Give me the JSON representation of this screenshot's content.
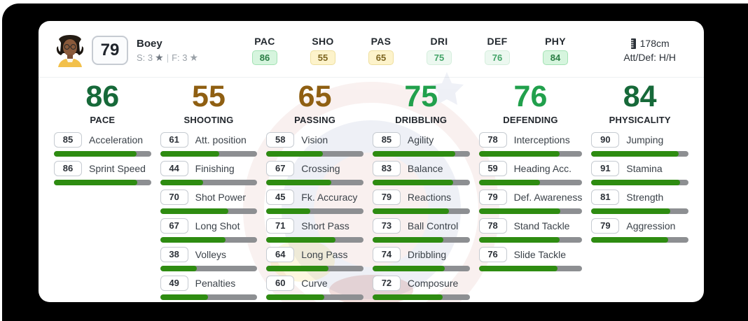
{
  "player": {
    "rating": "79",
    "name": "Boey",
    "skill_label": "S: 3",
    "foot_label": "F: 3",
    "separator": "|",
    "height": "178cm",
    "att_def": "Att/Def: H/H"
  },
  "icons": {
    "star": "★"
  },
  "header_stats": [
    {
      "label": "PAC",
      "value": "86",
      "tone": "green"
    },
    {
      "label": "SHO",
      "value": "55",
      "tone": "yellow"
    },
    {
      "label": "PAS",
      "value": "65",
      "tone": "yellow"
    },
    {
      "label": "DRI",
      "value": "75",
      "tone": "lightgreen"
    },
    {
      "label": "DEF",
      "value": "76",
      "tone": "lightgreen"
    },
    {
      "label": "PHY",
      "value": "84",
      "tone": "green"
    }
  ],
  "categories": [
    {
      "name": "PACE",
      "value": 86,
      "tone": "green-dark",
      "stats": [
        {
          "value": 85,
          "label": "Acceleration"
        },
        {
          "value": 86,
          "label": "Sprint Speed"
        }
      ]
    },
    {
      "name": "SHOOTING",
      "value": 55,
      "tone": "brown",
      "stats": [
        {
          "value": 61,
          "label": "Att. position"
        },
        {
          "value": 44,
          "label": "Finishing"
        },
        {
          "value": 70,
          "label": "Shot Power"
        },
        {
          "value": 67,
          "label": "Long Shot"
        },
        {
          "value": 38,
          "label": "Volleys"
        },
        {
          "value": 49,
          "label": "Penalties"
        }
      ]
    },
    {
      "name": "PASSING",
      "value": 65,
      "tone": "brown",
      "stats": [
        {
          "value": 58,
          "label": "Vision"
        },
        {
          "value": 67,
          "label": "Crossing"
        },
        {
          "value": 45,
          "label": "Fk. Accuracy"
        },
        {
          "value": 71,
          "label": "Short Pass"
        },
        {
          "value": 64,
          "label": "Long Pass"
        },
        {
          "value": 60,
          "label": "Curve"
        }
      ]
    },
    {
      "name": "DRIBBLING",
      "value": 75,
      "tone": "green",
      "stats": [
        {
          "value": 85,
          "label": "Agility"
        },
        {
          "value": 83,
          "label": "Balance"
        },
        {
          "value": 79,
          "label": "Reactions"
        },
        {
          "value": 73,
          "label": "Ball Control"
        },
        {
          "value": 74,
          "label": "Dribbling"
        },
        {
          "value": 72,
          "label": "Composure"
        }
      ]
    },
    {
      "name": "DEFENDING",
      "value": 76,
      "tone": "green",
      "stats": [
        {
          "value": 78,
          "label": "Interceptions"
        },
        {
          "value": 59,
          "label": "Heading Acc."
        },
        {
          "value": 79,
          "label": "Def. Awareness"
        },
        {
          "value": 78,
          "label": "Stand Tackle"
        },
        {
          "value": 76,
          "label": "Slide Tackle"
        }
      ]
    },
    {
      "name": "PHYSICALITY",
      "value": 84,
      "tone": "green-dark",
      "stats": [
        {
          "value": 90,
          "label": "Jumping"
        },
        {
          "value": 91,
          "label": "Stamina"
        },
        {
          "value": 81,
          "label": "Strength"
        },
        {
          "value": 79,
          "label": "Aggression"
        }
      ]
    }
  ],
  "colors": {
    "page_bg": "#000000",
    "card_bg": "#ffffff",
    "bar_fill": "#2e8c11",
    "bar_track": "#8d8f92",
    "tones": {
      "green-dark": "#166939",
      "green": "#21a04c",
      "brown": "#8f5f12"
    },
    "badges": {
      "green": {
        "bg": "#d6f5de",
        "border": "#a3e2b4",
        "text": "#2a7d44"
      },
      "yellow": {
        "bg": "#fdf3cb",
        "border": "#eedf9e",
        "text": "#7d6520"
      },
      "lightgreen": {
        "bg": "#ecf8f0",
        "border": "#d5eedd",
        "text": "#44a468"
      }
    }
  }
}
